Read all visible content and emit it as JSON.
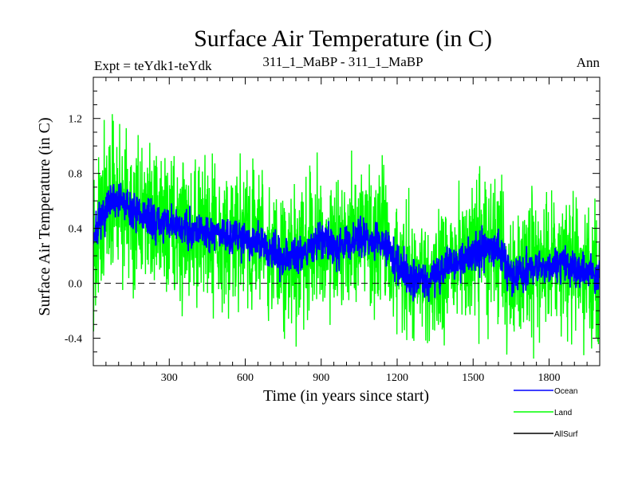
{
  "chart_data": {
    "type": "line",
    "title": "Surface Air Temperature (in C)",
    "subtitle_left": "Expt = teYdk1-teYdk",
    "subtitle_center": "311_1_MaBP - 311_1_MaBP",
    "subtitle_right": "Ann",
    "xlabel": "Time (in years since start)",
    "ylabel": "Surface Air Temperature (in C)",
    "xlim": [
      0,
      2000
    ],
    "ylim": [
      -0.6,
      1.5
    ],
    "xticks": [
      300,
      600,
      900,
      1200,
      1500,
      1800
    ],
    "yticks": [
      -0.4,
      0.0,
      0.4,
      0.8,
      1.2
    ],
    "ytick_labels": [
      "-0.4",
      "0.0",
      "0.4",
      "0.8",
      "1.2"
    ],
    "reference_line": 0.0,
    "anchors": {
      "x": [
        0,
        30,
        60,
        90,
        120,
        150,
        200,
        250,
        300,
        350,
        400,
        450,
        500,
        550,
        600,
        650,
        700,
        750,
        800,
        850,
        900,
        950,
        1000,
        1050,
        1100,
        1150,
        1200,
        1250,
        1300,
        1350,
        1400,
        1450,
        1500,
        1550,
        1600,
        1650,
        1700,
        1750,
        1800,
        1850,
        1900,
        1950,
        2000
      ],
      "ocean": [
        0.35,
        0.45,
        0.55,
        0.62,
        0.58,
        0.52,
        0.48,
        0.45,
        0.42,
        0.4,
        0.4,
        0.38,
        0.36,
        0.35,
        0.33,
        0.3,
        0.22,
        0.2,
        0.22,
        0.25,
        0.32,
        0.28,
        0.28,
        0.35,
        0.32,
        0.28,
        0.15,
        0.05,
        0.02,
        0.05,
        0.15,
        0.15,
        0.22,
        0.25,
        0.28,
        0.05,
        0.08,
        0.12,
        0.1,
        0.15,
        0.12,
        0.1,
        0.05
      ]
    },
    "series": [
      {
        "name": "Ocean",
        "color": "#0000ff",
        "noise": 0.07,
        "seed": 7
      },
      {
        "name": "Land",
        "color": "#00ff00",
        "noise": 0.25,
        "seed": 13
      },
      {
        "name": "AllSurf",
        "color": "#000000",
        "noise": 0.0,
        "seed": 0
      }
    ]
  },
  "legend": [
    {
      "label": "Ocean",
      "color": "#0000ff"
    },
    {
      "label": "Land",
      "color": "#00ff00"
    },
    {
      "label": "AllSurf",
      "color": "#000000"
    }
  ]
}
